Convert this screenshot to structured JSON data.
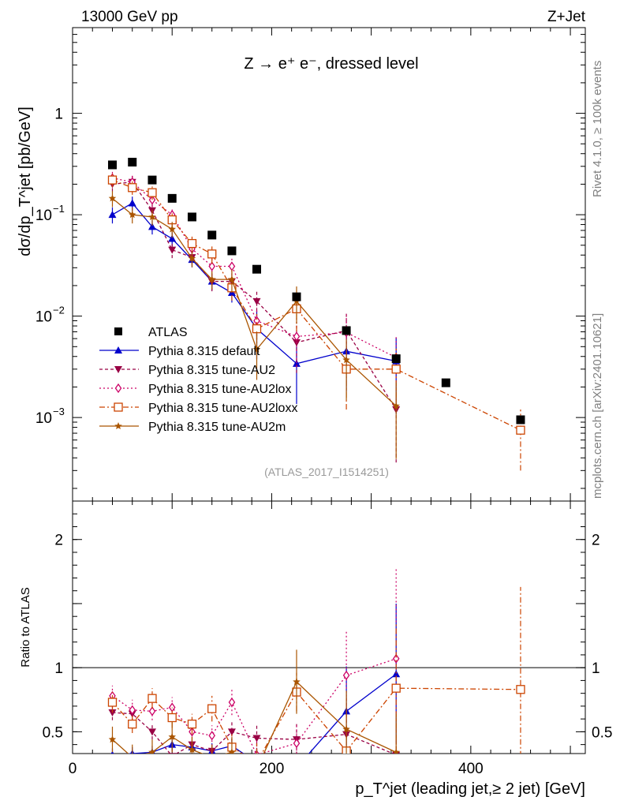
{
  "header": {
    "energy": "13000 GeV pp",
    "process": "Z+Jet"
  },
  "side_labels": {
    "rivet": "Rivet 4.1.0, ≥ 100k events",
    "mcplots": "mcplots.cern.ch [arXiv:2401.10621]"
  },
  "chart_data": {
    "type": "scatter",
    "title": "Z → e⁺ e⁻, dressed level",
    "analysis_tag": "(ATLAS_2017_I1514251)",
    "xlabel": "p_T^jet (leading jet,≥ 2 jet) [GeV]",
    "ylabel": "dσ/dp_T^jet [pb/GeV]",
    "ratio_ylabel": "Ratio to ATLAS",
    "xlim": [
      0,
      515
    ],
    "ylim_log": [
      0.00015,
      7
    ],
    "ratio_ylim": [
      0.33,
      2.3
    ],
    "x_ticks": [
      "0",
      "200",
      "400"
    ],
    "y_ticks": [
      "10^-3",
      "10^-2",
      "10^-1",
      "1"
    ],
    "ratio_ticks": [
      "0.5",
      "1",
      "2"
    ],
    "bins": [
      40,
      60,
      80,
      100,
      120,
      140,
      160,
      185,
      225,
      275,
      325,
      375,
      450
    ],
    "data": {
      "name": "ATLAS",
      "color": "#000000",
      "marker": "square",
      "values": [
        0.31,
        0.33,
        0.22,
        0.145,
        0.095,
        0.063,
        0.044,
        0.029,
        0.0155,
        0.0072,
        0.0038,
        0.0022,
        0.00095
      ]
    },
    "series": [
      {
        "name": "Pythia 8.315 default",
        "color": "#0000cc",
        "marker": "triangle-up",
        "dash": "",
        "values": [
          0.1,
          0.13,
          0.076,
          0.058,
          0.036,
          0.022,
          0.017,
          0.0075,
          0.0034,
          0.0045,
          0.0036
        ],
        "errors": [
          0.18,
          0.16,
          0.16,
          0.16,
          0.16,
          0.18,
          0.2,
          0.5,
          0.6,
          0.6,
          0.7
        ],
        "ratios": [
          0.32,
          0.33,
          0.34,
          0.4,
          0.38,
          0.35,
          0.39,
          0.26,
          0.22,
          0.66,
          0.95
        ],
        "ratio_errors": [
          0.05,
          0.05,
          0.05,
          0.05,
          0.05,
          0.06,
          0.06,
          0.1,
          0.1,
          0.35,
          0.55
        ]
      },
      {
        "name": "Pythia 8.315 tune-AU2",
        "color": "#990044",
        "marker": "triangle-down",
        "dash": "4,3",
        "values": [
          0.2,
          0.21,
          0.11,
          0.045,
          0.038,
          0.022,
          0.022,
          0.014,
          0.0055,
          0.0072,
          0.0012
        ],
        "errors": [
          0.15,
          0.15,
          0.16,
          0.17,
          0.17,
          0.2,
          0.2,
          0.3,
          0.5,
          0.5,
          0.7
        ],
        "ratios": [
          0.65,
          0.64,
          0.5,
          0.31,
          0.4,
          0.35,
          0.5,
          0.45,
          0.44,
          0.48,
          0.32
        ],
        "ratio_errors": [
          0.06,
          0.06,
          0.06,
          0.05,
          0.06,
          0.06,
          0.08,
          0.1,
          0.12,
          0.3,
          0.3
        ]
      },
      {
        "name": "Pythia 8.315 tune-AU2lox",
        "color": "#cc0066",
        "marker": "diamond",
        "dash": "2,3",
        "values": [
          0.23,
          0.21,
          0.14,
          0.1,
          0.046,
          0.031,
          0.031,
          0.009,
          0.0063,
          0.0069,
          0.0039
        ],
        "errors": [
          0.15,
          0.15,
          0.15,
          0.17,
          0.17,
          0.2,
          0.2,
          0.35,
          0.5,
          0.5,
          0.6
        ],
        "ratios": [
          0.78,
          0.67,
          0.66,
          0.69,
          0.5,
          0.47,
          0.73,
          0.32,
          0.41,
          0.94,
          1.07
        ],
        "ratio_errors": [
          0.08,
          0.08,
          0.07,
          0.08,
          0.08,
          0.08,
          0.1,
          0.12,
          0.15,
          0.35,
          0.7
        ]
      },
      {
        "name": "Pythia 8.315 tune-AU2loxx",
        "color": "#cc4400",
        "marker": "open-square",
        "dash": "7,3,2,3",
        "values": [
          0.22,
          0.185,
          0.165,
          0.089,
          0.052,
          0.041,
          0.019,
          0.0075,
          0.0118,
          0.003,
          0.003,
          null,
          0.00075
        ],
        "errors": [
          0.15,
          0.15,
          0.15,
          0.16,
          0.17,
          0.2,
          0.25,
          0.4,
          0.4,
          0.6,
          0.6,
          null,
          0.6
        ],
        "ratios": [
          0.73,
          0.56,
          0.76,
          0.61,
          0.56,
          0.68,
          0.38,
          0.26,
          0.81,
          0.35,
          0.84,
          null,
          0.83
        ],
        "ratio_errors": [
          0.08,
          0.07,
          0.08,
          0.08,
          0.08,
          0.1,
          0.1,
          0.15,
          0.15,
          0.3,
          0.5,
          null,
          0.8
        ]
      },
      {
        "name": "Pythia 8.315 tune-AU2m",
        "color": "#aa5500",
        "marker": "star",
        "dash": "",
        "values": [
          0.145,
          0.1,
          0.095,
          0.072,
          0.037,
          0.023,
          0.023,
          0.0047,
          0.014,
          0.0037,
          0.0013
        ],
        "errors": [
          0.18,
          0.18,
          0.18,
          0.18,
          0.18,
          0.2,
          0.25,
          0.5,
          0.4,
          0.6,
          0.7
        ],
        "ratios": [
          0.44,
          0.3,
          0.34,
          0.46,
          0.36,
          0.3,
          0.34,
          0.21,
          0.89,
          0.52,
          0.34
        ],
        "ratio_errors": [
          0.1,
          0.1,
          0.1,
          0.12,
          0.1,
          0.1,
          0.12,
          0.15,
          0.25,
          0.3,
          0.3
        ]
      }
    ]
  }
}
